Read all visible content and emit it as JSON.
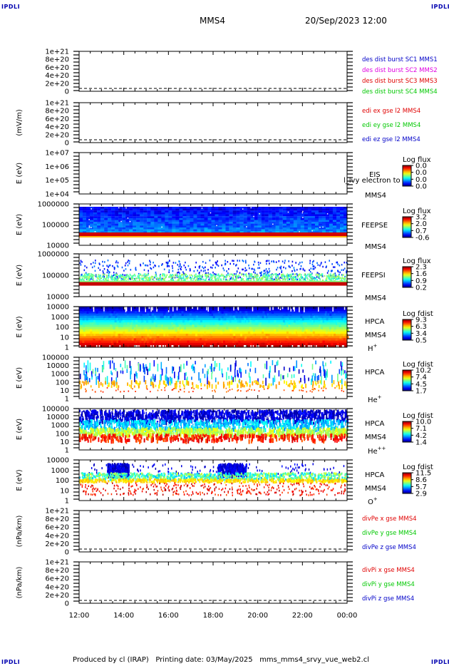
{
  "header": {
    "corner_label": "IPDLI",
    "spacecraft": "MMS4",
    "datetime": "20/Sep/2023 12:00"
  },
  "footer": {
    "text": "Produced by cl (IRAP)   Printing date: 03/May/2025   mms_mms4_srvy_vue_web2.cl"
  },
  "colors": {
    "series_red": "#e00000",
    "series_green": "#00c800",
    "series_blue": "#0000c8",
    "series_magenta": "#e000e0",
    "corner_blue": "#0000b0"
  },
  "chart_data": [
    {
      "id": "des_dist_burst",
      "type": "line",
      "ylabel": "",
      "yticks": [
        "1e+21",
        "8e+20",
        "6e+20",
        "4e+20",
        "2e+20",
        "0"
      ],
      "zero_line": true,
      "legend": [
        {
          "name": "des dist burst SC1 MMS1",
          "color": "#0000c8"
        },
        {
          "name": "des dist burst SC2 MMS2",
          "color": "#e000e0"
        },
        {
          "name": "des dist burst SC3 MMS3",
          "color": "#e00000"
        },
        {
          "name": "des dist burst SC4 MMS4",
          "color": "#00c800"
        }
      ]
    },
    {
      "id": "edi_e",
      "type": "line",
      "ylabel": "(mV/m)",
      "yticks": [
        "1e+21",
        "8e+20",
        "6e+20",
        "4e+20",
        "2e+20",
        "0"
      ],
      "zero_line": true,
      "legend": [
        {
          "name": "edi ex gse l2 MMS4",
          "color": "#e00000"
        },
        {
          "name": "edi ey gse l2 MMS4",
          "color": "#00c800"
        },
        {
          "name": "edi ez gse l2 MMS4",
          "color": "#0000c8"
        }
      ]
    },
    {
      "id": "eis",
      "type": "heatmap",
      "ylabel": "E (eV)",
      "yticks": [
        "1e+07",
        "1e+06",
        "1e+05",
        "1e+04"
      ],
      "instrument": "EIS",
      "instrument_extra": "l_lvy electron to",
      "spacecraft": "MMS4",
      "colorbar": {
        "title": "Log flux",
        "ticks": [
          "0.0",
          "0.0",
          "0.0",
          "0.0"
        ]
      },
      "pattern": "empty"
    },
    {
      "id": "feepse",
      "type": "heatmap",
      "ylabel": "E (eV)",
      "yticks": [
        "1000000",
        "100000",
        "10000"
      ],
      "instrument": "FEEPSE",
      "spacecraft": "MMS4",
      "colorbar": {
        "title": "Log flux",
        "ticks": [
          "3.2",
          "2.0",
          "0.7",
          "-0.6"
        ]
      },
      "pattern": "feeps_e"
    },
    {
      "id": "feepsi",
      "type": "heatmap",
      "ylabel": "E (eV)",
      "yticks": [
        "1000000",
        "100000",
        "10000"
      ],
      "instrument": "FEEPSI",
      "spacecraft": "MMS4",
      "colorbar": {
        "title": "Log flux",
        "ticks": [
          "2.3",
          "1.6",
          "0.9",
          "0.2"
        ]
      },
      "pattern": "feeps_i"
    },
    {
      "id": "hpca_h",
      "type": "heatmap",
      "ylabel": "E (eV)",
      "yticks": [
        "10000",
        "1000",
        "100",
        "10",
        "1"
      ],
      "instrument": "HPCA",
      "spacecraft": "MMS4",
      "species": "H",
      "species_sup": "+",
      "colorbar": {
        "title": "Log fdist",
        "ticks": [
          "9.3",
          "6.3",
          "3.4",
          "0.5"
        ]
      },
      "pattern": "hpca_h"
    },
    {
      "id": "hpca_he",
      "type": "heatmap",
      "ylabel": "E (eV)",
      "yticks": [
        "100000",
        "10000",
        "1000",
        "100",
        "10",
        "1"
      ],
      "instrument": "HPCA",
      "spacecraft": "",
      "species": "He",
      "species_sup": "+",
      "colorbar": {
        "title": "Log fdist",
        "ticks": [
          "10.2",
          "7.4",
          "4.5",
          "1.7"
        ]
      },
      "pattern": "hpca_he"
    },
    {
      "id": "hpca_hepp",
      "type": "heatmap",
      "ylabel": "E (eV)",
      "yticks": [
        "100000",
        "10000",
        "1000",
        "100",
        "10",
        "1"
      ],
      "instrument": "HPCA",
      "spacecraft": "MMS4",
      "species": "He",
      "species_sup": "++",
      "colorbar": {
        "title": "Log fdist",
        "ticks": [
          "10.0",
          "7.1",
          "4.2",
          "1.4"
        ]
      },
      "pattern": "hpca_hepp"
    },
    {
      "id": "hpca_o",
      "type": "heatmap",
      "ylabel": "E (eV)",
      "yticks": [
        "10000",
        "1000",
        "100",
        "10",
        "1"
      ],
      "instrument": "HPCA",
      "spacecraft": "MMS4",
      "species": "O",
      "species_sup": "+",
      "colorbar": {
        "title": "Log fdist",
        "ticks": [
          "11.5",
          "8.6",
          "5.7",
          "2.9"
        ]
      },
      "pattern": "hpca_o"
    },
    {
      "id": "divpe",
      "type": "line",
      "ylabel": "(nPa/km)",
      "yticks": [
        "1e+21",
        "8e+20",
        "6e+20",
        "4e+20",
        "2e+20",
        "0"
      ],
      "zero_line": true,
      "legend": [
        {
          "name": "divPe x gse MMS4",
          "color": "#e00000"
        },
        {
          "name": "divPe y gse MMS4",
          "color": "#00c800"
        },
        {
          "name": "divPe z gse MMS4",
          "color": "#0000c8"
        }
      ]
    },
    {
      "id": "divpi",
      "type": "line",
      "ylabel": "(nPa/km)",
      "yticks": [
        "1e+21",
        "8e+20",
        "6e+20",
        "4e+20",
        "2e+20",
        "0"
      ],
      "zero_line": true,
      "legend": [
        {
          "name": "divPi x gse MMS4",
          "color": "#e00000"
        },
        {
          "name": "divPi y gse MMS4",
          "color": "#00c800"
        },
        {
          "name": "divPi z gse MMS4",
          "color": "#0000c8"
        }
      ]
    }
  ],
  "time_axis": {
    "ticks": [
      "12:00",
      "14:00",
      "16:00",
      "18:00",
      "20:00",
      "22:00",
      "00:00"
    ]
  }
}
